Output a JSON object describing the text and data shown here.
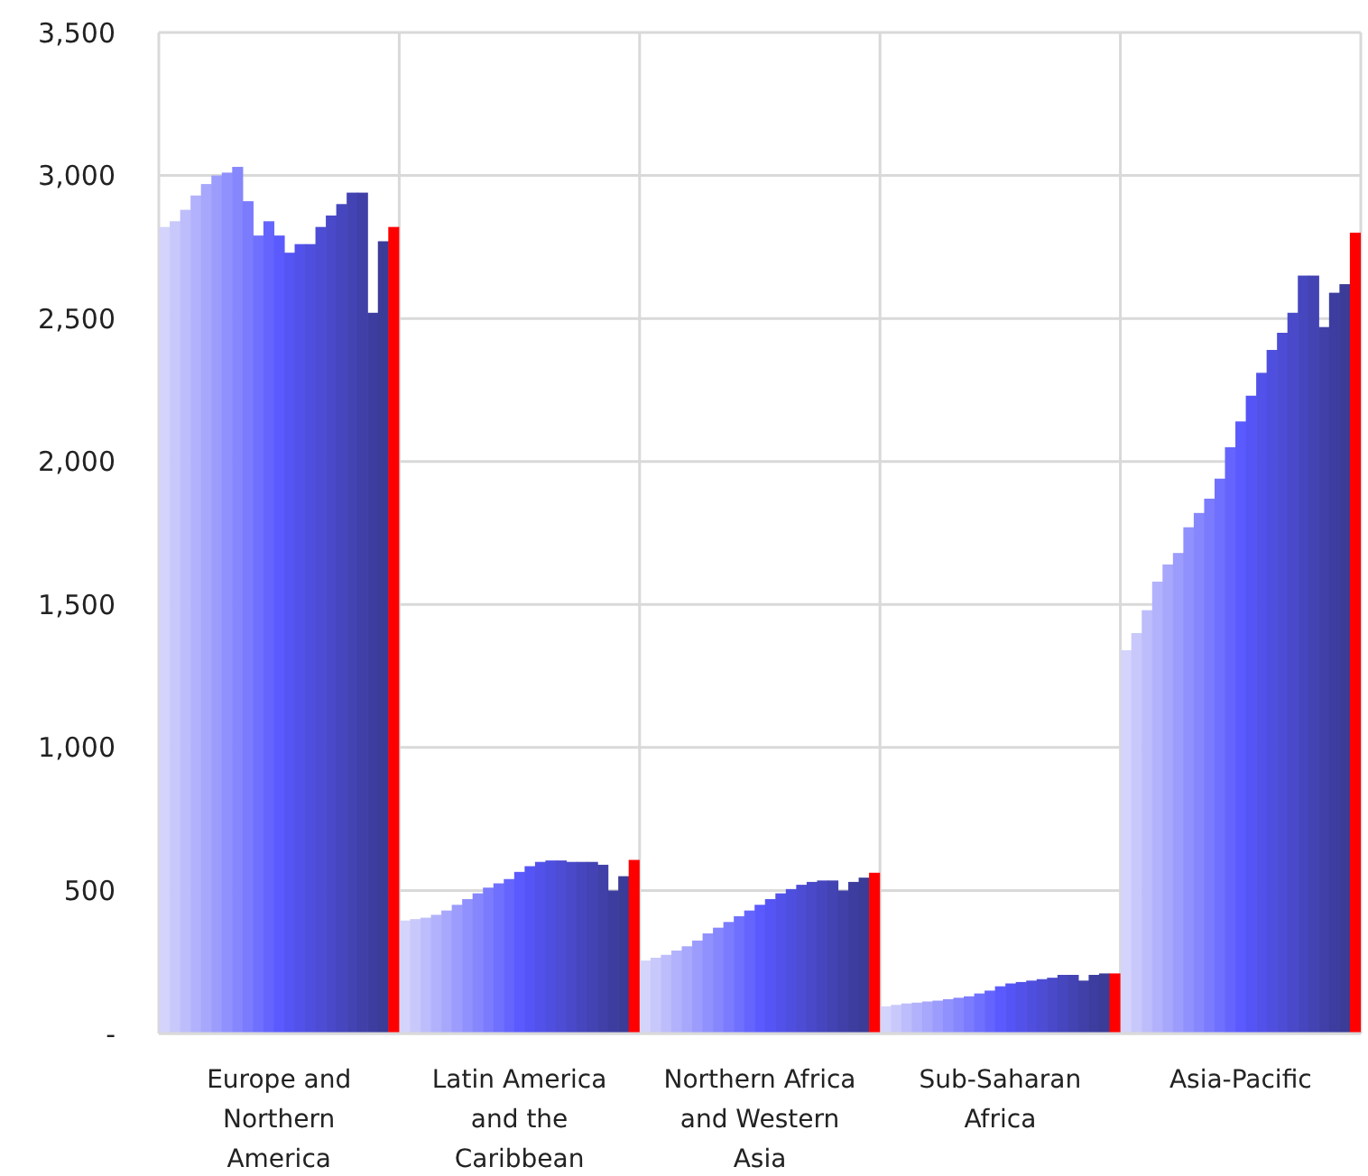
{
  "chart_data": {
    "type": "bar",
    "categories": [
      "Europe and Northern America",
      "Latin America and the Caribbean",
      "Northern Africa and Western Asia",
      "Sub-Saharan Africa",
      "Asia-Pacific"
    ],
    "ylim": [
      0,
      3500
    ],
    "yticks": [
      {
        "value": 0,
        "label": "-"
      },
      {
        "value": 500,
        "label": "500"
      },
      {
        "value": 1000,
        "label": "1,000"
      },
      {
        "value": 1500,
        "label": "1,500"
      },
      {
        "value": 2000,
        "label": "2,000"
      },
      {
        "value": 2500,
        "label": "2,500"
      },
      {
        "value": 3000,
        "label": "3,000"
      },
      {
        "value": 3500,
        "label": "3,500"
      }
    ],
    "grid": true,
    "series": [
      {
        "color": "#d3d3fb",
        "values": [
          2820,
          395,
          255,
          95,
          1340
        ]
      },
      {
        "color": "#c8c8fb",
        "values": [
          2840,
          400,
          265,
          100,
          1400
        ]
      },
      {
        "color": "#bdbdfc",
        "values": [
          2880,
          405,
          275,
          105,
          1480
        ]
      },
      {
        "color": "#b2b2fc",
        "values": [
          2930,
          415,
          290,
          108,
          1580
        ]
      },
      {
        "color": "#a7a7fc",
        "values": [
          2970,
          430,
          305,
          112,
          1640
        ]
      },
      {
        "color": "#9c9cfd",
        "values": [
          3000,
          450,
          325,
          115,
          1680
        ]
      },
      {
        "color": "#9191fd",
        "values": [
          3010,
          470,
          350,
          120,
          1770
        ]
      },
      {
        "color": "#8686fd",
        "values": [
          3030,
          490,
          370,
          125,
          1820
        ]
      },
      {
        "color": "#7b7bfe",
        "values": [
          2910,
          510,
          390,
          130,
          1870
        ]
      },
      {
        "color": "#7070fe",
        "values": [
          2790,
          525,
          410,
          140,
          1940
        ]
      },
      {
        "color": "#6565fe",
        "values": [
          2840,
          540,
          430,
          150,
          2050
        ]
      },
      {
        "color": "#5a5aff",
        "values": [
          2790,
          565,
          450,
          165,
          2140
        ]
      },
      {
        "color": "#5555f5",
        "values": [
          2730,
          585,
          470,
          175,
          2230
        ]
      },
      {
        "color": "#5252ea",
        "values": [
          2760,
          600,
          490,
          180,
          2310
        ]
      },
      {
        "color": "#4f4fdf",
        "values": [
          2760,
          605,
          505,
          185,
          2390
        ]
      },
      {
        "color": "#4c4cd4",
        "values": [
          2820,
          605,
          520,
          190,
          2450
        ]
      },
      {
        "color": "#4949c9",
        "values": [
          2860,
          600,
          530,
          195,
          2520
        ]
      },
      {
        "color": "#4646be",
        "values": [
          2900,
          600,
          535,
          205,
          2650
        ]
      },
      {
        "color": "#4343b3",
        "values": [
          2940,
          600,
          535,
          205,
          2650
        ]
      },
      {
        "color": "#4040a8",
        "values": [
          2940,
          590,
          500,
          185,
          2470
        ]
      },
      {
        "color": "#3d3da0",
        "values": [
          2520,
          500,
          530,
          205,
          2590
        ]
      },
      {
        "color": "#3b3b98",
        "values": [
          2770,
          550,
          545,
          210,
          2620
        ]
      },
      {
        "color": "#ff0000",
        "values": [
          2820,
          607,
          562,
          210,
          2800
        ]
      }
    ]
  }
}
